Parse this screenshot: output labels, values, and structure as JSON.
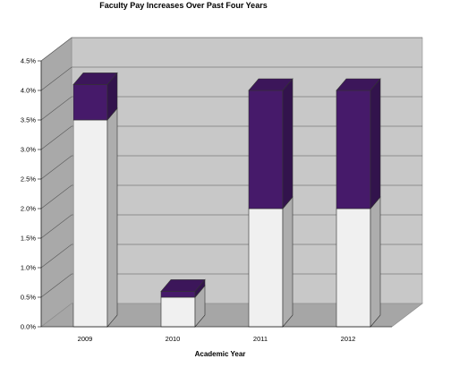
{
  "colors": {
    "base_segment": "#f0f0f0",
    "increase_segment": "#461a6a",
    "wall": "#c8c8c8",
    "floor": "#a6a6a6"
  },
  "chart_data": {
    "type": "bar",
    "stacked": true,
    "three_d": true,
    "title": "Faculty Pay Increases Over Past Four Years",
    "xlabel": "Academic Year",
    "ylabel": "",
    "categories": [
      "2009",
      "2010",
      "2011",
      "2012"
    ],
    "series": [
      {
        "values": [
          3.5,
          0.5,
          2.0,
          2.0
        ],
        "color": "#f0f0f0"
      },
      {
        "values": [
          0.6,
          0.1,
          2.0,
          2.0
        ],
        "color": "#461a6a"
      }
    ],
    "ylim": [
      0,
      4.5
    ],
    "yticks": [
      "0.0%",
      "0.5%",
      "1.0%",
      "1.5%",
      "2.0%",
      "2.5%",
      "3.0%",
      "3.5%",
      "4.0%",
      "4.5%"
    ],
    "grid": true,
    "legend": "none"
  }
}
